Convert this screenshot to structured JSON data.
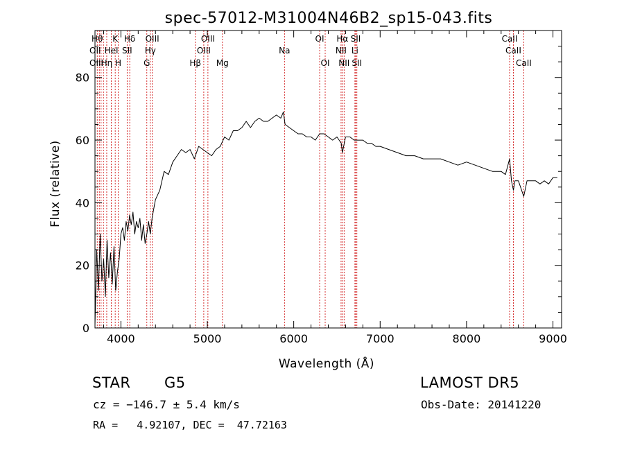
{
  "chart_data": {
    "type": "line",
    "title": "spec-57012-M31004N46B2_sp15-043.fits",
    "xlabel": "Wavelength (Å)",
    "ylabel": "Flux (relative)",
    "xlim": [
      3700,
      9100
    ],
    "ylim": [
      0,
      95
    ],
    "x_ticks": [
      4000,
      5000,
      6000,
      7000,
      8000,
      9000
    ],
    "y_ticks": [
      0,
      20,
      40,
      60,
      80
    ],
    "grid": false,
    "series": [
      {
        "x": [
          3700,
          3720,
          3740,
          3760,
          3780,
          3800,
          3820,
          3840,
          3860,
          3880,
          3900,
          3920,
          3940,
          3960,
          3980,
          4000,
          4020,
          4040,
          4060,
          4080,
          4100,
          4120,
          4140,
          4160,
          4180,
          4200,
          4220,
          4240,
          4260,
          4280,
          4300,
          4320,
          4340,
          4360,
          4380,
          4400,
          4450,
          4500,
          4550,
          4600,
          4650,
          4700,
          4750,
          4800,
          4850,
          4900,
          4950,
          5000,
          5050,
          5100,
          5150,
          5200,
          5250,
          5300,
          5350,
          5400,
          5450,
          5500,
          5550,
          5600,
          5650,
          5700,
          5750,
          5800,
          5850,
          5880,
          5900,
          5950,
          6000,
          6050,
          6100,
          6150,
          6200,
          6250,
          6300,
          6350,
          6400,
          6450,
          6500,
          6550,
          6563,
          6600,
          6650,
          6700,
          6750,
          6800,
          6850,
          6900,
          6950,
          7000,
          7100,
          7200,
          7300,
          7400,
          7500,
          7600,
          7700,
          7800,
          7900,
          8000,
          8100,
          8200,
          8300,
          8400,
          8450,
          8498,
          8520,
          8542,
          8560,
          8600,
          8662,
          8700,
          8750,
          8800,
          8850,
          8900,
          8950,
          9000,
          9050
        ],
        "y": [
          1,
          25,
          12,
          30,
          15,
          22,
          10,
          28,
          16,
          24,
          14,
          26,
          12,
          18,
          22,
          30,
          32,
          28,
          34,
          31,
          36,
          33,
          37,
          30,
          34,
          32,
          35,
          28,
          33,
          27,
          30,
          34,
          30,
          35,
          38,
          41,
          44,
          50,
          49,
          53,
          55,
          57,
          56,
          57,
          54,
          58,
          57,
          56,
          55,
          57,
          58,
          61,
          60,
          63,
          63,
          64,
          66,
          64,
          66,
          67,
          66,
          66,
          67,
          68,
          67,
          69,
          65,
          64,
          63,
          62,
          62,
          61,
          61,
          60,
          62,
          62,
          61,
          60,
          61,
          59,
          56,
          61,
          61,
          60,
          60,
          60,
          59,
          59,
          58,
          58,
          57,
          56,
          55,
          55,
          54,
          54,
          54,
          53,
          52,
          53,
          52,
          51,
          50,
          50,
          49,
          54,
          47,
          44,
          47,
          47,
          42,
          47,
          47,
          47,
          46,
          47,
          46,
          48,
          48
        ]
      }
    ],
    "line_labels": [
      {
        "x": 3726,
        "label": "Hθ",
        "row": 1
      },
      {
        "x": 3750,
        "label": "",
        "row": 1
      },
      {
        "x": 3771,
        "label": "",
        "row": 1
      },
      {
        "x": 3798,
        "label": "",
        "row": 1
      },
      {
        "x": 3836,
        "label": "Hη",
        "row": 3
      },
      {
        "x": 3889,
        "label": "HeI",
        "row": 2
      },
      {
        "x": 3934,
        "label": "K",
        "row": 1
      },
      {
        "x": 3969,
        "label": "H",
        "row": 3
      },
      {
        "x": 4072,
        "label": "SII",
        "row": 2
      },
      {
        "x": 4102,
        "label": "Hδ",
        "row": 1
      },
      {
        "x": 4300,
        "label": "G",
        "row": 3
      },
      {
        "x": 4340,
        "label": "Hγ",
        "row": 2
      },
      {
        "x": 4363,
        "label": "OIII",
        "row": 1
      },
      {
        "x": 4861,
        "label": "Hβ",
        "row": 3
      },
      {
        "x": 4959,
        "label": "OIII",
        "row": 2
      },
      {
        "x": 5007,
        "label": "OIII",
        "row": 1
      },
      {
        "x": 5175,
        "label": "Mg",
        "row": 3
      },
      {
        "x": 5893,
        "label": "Na",
        "row": 2
      },
      {
        "x": 6300,
        "label": "OI",
        "row": 1
      },
      {
        "x": 6364,
        "label": "OI",
        "row": 3
      },
      {
        "x": 6548,
        "label": "NII",
        "row": 2
      },
      {
        "x": 6563,
        "label": "Hα",
        "row": 1
      },
      {
        "x": 6583,
        "label": "NII",
        "row": 3
      },
      {
        "x": 6708,
        "label": "Li",
        "row": 2
      },
      {
        "x": 6717,
        "label": "SII",
        "row": 1
      },
      {
        "x": 6731,
        "label": "SII",
        "row": 3
      },
      {
        "x": 8498,
        "label": "CaII",
        "row": 1
      },
      {
        "x": 8542,
        "label": "CaII",
        "row": 2
      },
      {
        "x": 8662,
        "label": "CaII",
        "row": 3
      }
    ],
    "left_edge_labels": [
      {
        "label": "OII",
        "row": 2
      },
      {
        "label": "OIII",
        "row": 3
      }
    ],
    "colors": {
      "line": "#000000",
      "marker": "#cc0000",
      "label": "#000000"
    }
  },
  "footer": {
    "object_type": "STAR",
    "subclass": "G5",
    "survey": "LAMOST DR5",
    "redshift_text": "cz = −146.7 ± 5.4 km/s",
    "obs_date": "Obs-Date: 20141220",
    "coordinates": "RA =   4.92107, DEC =  47.72163"
  }
}
